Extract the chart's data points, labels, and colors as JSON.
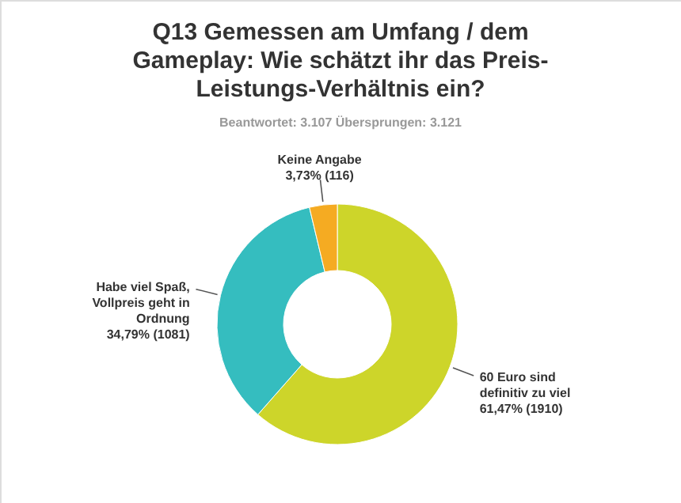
{
  "chart_data": {
    "type": "donut",
    "title": "Q13 Gemessen am Umfang / dem Gameplay: Wie schätzt ihr das Preis-Leistungs-Verhältnis ein?",
    "subtitle": "Beantwortet: 3.107    Übersprungen: 3.121",
    "categories": [
      "60 Euro sind definitiv zu viel",
      "Habe viel Spaß, Vollpreis geht in Ordnung",
      "Keine Angabe"
    ],
    "values": [
      61.47,
      34.79,
      3.73
    ],
    "value_labels": [
      "61,47% (1910)",
      "34,79% (1081)",
      "3,73% (116)"
    ],
    "colors": [
      "#cdd52a",
      "#35bdbf",
      "#f5ab22"
    ]
  }
}
